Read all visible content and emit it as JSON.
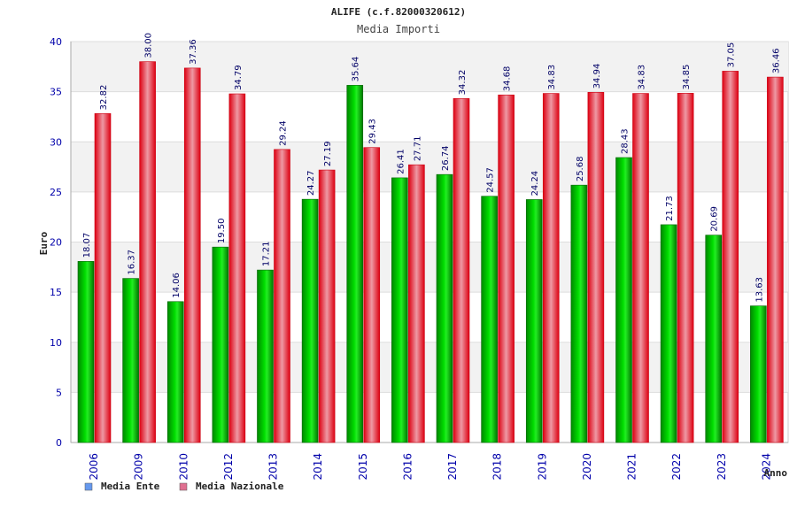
{
  "chart_data": {
    "type": "bar",
    "title": "ALIFE (c.f.82000320612)",
    "subtitle": "Media Importi",
    "xlabel": "Anno",
    "ylabel": "Euro",
    "ylim": [
      0,
      40
    ],
    "yticks": [
      0,
      5,
      10,
      15,
      20,
      25,
      30,
      35,
      40
    ],
    "grid": true,
    "legend_position": "bottom-left",
    "categories": [
      "2006",
      "2009",
      "2010",
      "2012",
      "2013",
      "2014",
      "2015",
      "2016",
      "2017",
      "2018",
      "2019",
      "2020",
      "2021",
      "2022",
      "2023",
      "2024"
    ],
    "series": [
      {
        "name": "Media Ente",
        "color": "#00cc00",
        "legend_color": "#6699ee",
        "values": [
          18.07,
          16.37,
          14.06,
          19.5,
          17.21,
          24.27,
          35.64,
          26.41,
          26.74,
          24.57,
          24.24,
          25.68,
          28.43,
          21.73,
          20.69,
          13.63
        ],
        "labels": [
          "18.07",
          "16.37",
          "14.06",
          "19.50",
          "17.21",
          "24.27",
          "35.64",
          "26.41",
          "26.74",
          "24.57",
          "24.24",
          "25.68",
          "28.43",
          "21.73",
          "20.69",
          "13.63"
        ]
      },
      {
        "name": "Media Nazionale",
        "color": "#ee1122",
        "legend_color": "#e07090",
        "values": [
          32.82,
          38.0,
          37.36,
          34.79,
          29.24,
          27.19,
          29.43,
          27.71,
          34.32,
          34.68,
          34.83,
          34.94,
          34.83,
          34.85,
          37.05,
          36.46
        ],
        "labels": [
          "32.82",
          "38.00",
          "37.36",
          "34.79",
          "29.24",
          "27.19",
          "29.43",
          "27.71",
          "34.32",
          "34.68",
          "34.83",
          "34.94",
          "34.83",
          "34.85",
          "37.05",
          "36.46"
        ]
      }
    ]
  }
}
